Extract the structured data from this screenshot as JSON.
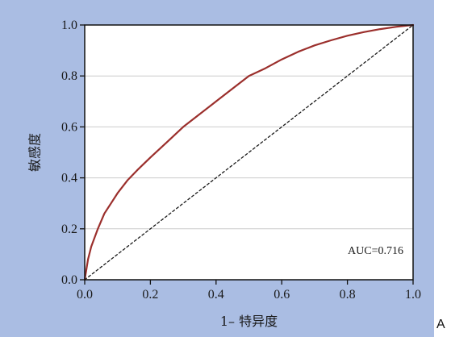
{
  "chart_data": {
    "type": "line",
    "xlabel": "1– 特异度",
    "ylabel": "敏感度",
    "xlim": [
      0.0,
      1.0
    ],
    "ylim": [
      0.0,
      1.0
    ],
    "x_ticks": [
      "0.0",
      "0.2",
      "0.4",
      "0.6",
      "0.8",
      "1.0"
    ],
    "y_ticks": [
      "0.0",
      "0.2",
      "0.4",
      "0.6",
      "0.8",
      "1.0"
    ],
    "grid": "horizontal",
    "annotation": "AUC=0.716",
    "series": [
      {
        "color": "#9b2f2c",
        "style": "solid",
        "x": [
          0.0,
          0.01,
          0.02,
          0.04,
          0.06,
          0.08,
          0.1,
          0.13,
          0.16,
          0.2,
          0.25,
          0.3,
          0.35,
          0.4,
          0.45,
          0.5,
          0.55,
          0.6,
          0.65,
          0.7,
          0.75,
          0.8,
          0.85,
          0.9,
          0.95,
          1.0
        ],
        "y": [
          0.0,
          0.08,
          0.13,
          0.2,
          0.26,
          0.3,
          0.34,
          0.39,
          0.43,
          0.48,
          0.54,
          0.6,
          0.65,
          0.7,
          0.75,
          0.8,
          0.83,
          0.865,
          0.895,
          0.92,
          0.94,
          0.958,
          0.972,
          0.984,
          0.993,
          1.0
        ]
      },
      {
        "color": "#1a1a1a",
        "style": "dashed",
        "x": [
          0.0,
          1.0
        ],
        "y": [
          0.0,
          1.0
        ]
      }
    ]
  },
  "panel_letter": "A",
  "colors": {
    "panel_bg": "#aabde3",
    "plot_bg": "#ffffff",
    "grid": "#cccccc",
    "roc": "#9b2f2c"
  }
}
